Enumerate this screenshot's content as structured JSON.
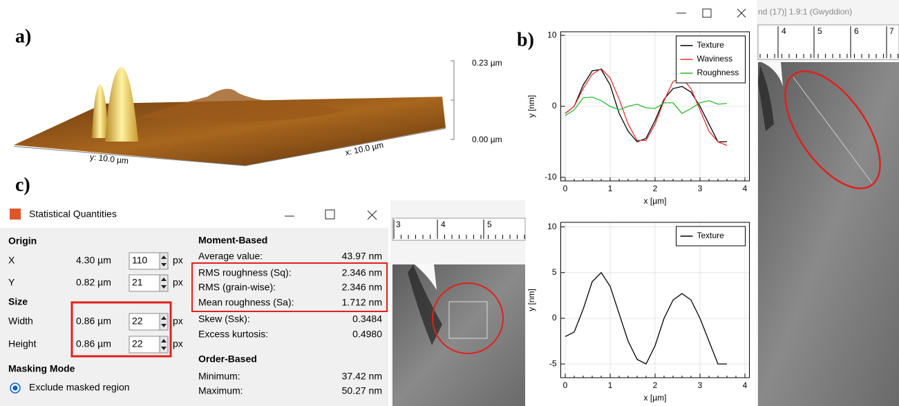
{
  "panels": {
    "a": "a)",
    "b": "b)",
    "c": "c)"
  },
  "surface": {
    "z_max": "0.23 µm",
    "z_min": "0.00 µm",
    "y_label": "y: 10.0 µm",
    "x_label": "x: 10.0 µm"
  },
  "image_window": {
    "title": "nd (17)] 1.9:1 (Gwyddion)",
    "ruler": [
      "4",
      "5",
      "6",
      "7"
    ]
  },
  "strip_ruler": [
    "3",
    "4",
    "5"
  ],
  "dialog": {
    "title": "Statistical Quantities",
    "origin": {
      "heading": "Origin",
      "rows": [
        {
          "label": "X",
          "value": "4.30 µm",
          "input": "110",
          "unit": "px"
        },
        {
          "label": "Y",
          "value": "0.82 µm",
          "input": "21",
          "unit": "px"
        }
      ]
    },
    "size": {
      "heading": "Size",
      "rows": [
        {
          "label": "Width",
          "value": "0.86 µm",
          "input": "22",
          "unit": "px"
        },
        {
          "label": "Height",
          "value": "0.86 µm",
          "input": "22",
          "unit": "px"
        }
      ]
    },
    "masking": {
      "heading": "Masking Mode",
      "option": "Exclude masked region"
    },
    "moment": {
      "heading": "Moment-Based",
      "rows": [
        {
          "label": "Average value:",
          "value": "43.97 nm"
        },
        {
          "label": "RMS roughness (Sq):",
          "value": "2.346 nm"
        },
        {
          "label": "RMS (grain-wise):",
          "value": "2.346 nm"
        },
        {
          "label": "Mean roughness (Sa):",
          "value": "1.712 nm"
        },
        {
          "label": "Skew (Ssk):",
          "value": "0.3484"
        },
        {
          "label": "Excess kurtosis:",
          "value": "0.4980"
        }
      ]
    },
    "order": {
      "heading": "Order-Based",
      "rows": [
        {
          "label": "Minimum:",
          "value": "37.42 nm"
        },
        {
          "label": "Maximum:",
          "value": "50.27 nm"
        }
      ]
    }
  },
  "chart_data": [
    {
      "type": "line",
      "x_label": "x [µm]",
      "y_label": "y [nm]",
      "x": [
        0,
        0.2,
        0.4,
        0.6,
        0.8,
        1.0,
        1.2,
        1.4,
        1.6,
        1.8,
        2.0,
        2.2,
        2.4,
        2.6,
        2.8,
        3.0,
        3.2,
        3.4,
        3.6
      ],
      "series": [
        {
          "name": "Texture",
          "color": "#000000",
          "values": [
            -1,
            0,
            3,
            5,
            5.2,
            3,
            -1,
            -3.5,
            -5,
            -4.5,
            -2,
            1,
            2.5,
            2.8,
            2,
            0,
            -2.5,
            -5,
            -5
          ]
        },
        {
          "name": "Waviness",
          "color": "#e8312f",
          "values": [
            -1,
            0,
            2.5,
            4.5,
            5.3,
            4,
            1,
            -2.5,
            -4.8,
            -4.8,
            -2.5,
            0.8,
            3.5,
            4,
            2.5,
            -0.5,
            -3.5,
            -5,
            -5.5
          ]
        },
        {
          "name": "Roughness",
          "color": "#2eb82e",
          "values": [
            -1.3,
            -0.5,
            1.2,
            1.3,
            0.8,
            0,
            -0.5,
            0,
            0.3,
            -0.2,
            -0.3,
            0.5,
            0.5,
            -1,
            -0.3,
            0.5,
            0.8,
            0.3,
            0.4
          ]
        }
      ],
      "xlim": [
        -0.1,
        4.1
      ],
      "xticks": [
        0,
        1,
        2,
        3,
        4
      ],
      "ylim": [
        -10.5,
        10.5
      ],
      "yticks": [
        -10,
        0,
        10
      ],
      "grid": true,
      "legend": "upper right"
    },
    {
      "type": "line",
      "x_label": "x [µm]",
      "y_label": "y [nm]",
      "x": [
        0,
        0.2,
        0.4,
        0.6,
        0.8,
        1.0,
        1.2,
        1.4,
        1.6,
        1.8,
        2.0,
        2.2,
        2.4,
        2.6,
        2.8,
        3.0,
        3.2,
        3.4,
        3.6
      ],
      "series": [
        {
          "name": "Texture",
          "color": "#000000",
          "values": [
            -2,
            -1.5,
            1,
            4,
            5,
            3.5,
            0.5,
            -2.5,
            -4.5,
            -5,
            -3,
            0,
            2,
            2.7,
            2,
            0,
            -2.5,
            -5,
            -5
          ]
        }
      ],
      "xlim": [
        -0.1,
        4.1
      ],
      "xticks": [
        0,
        1,
        2,
        3,
        4
      ],
      "ylim": [
        -6.5,
        10.5
      ],
      "yticks": [
        -5,
        0,
        5,
        10
      ],
      "grid": true,
      "legend": "upper right"
    }
  ]
}
